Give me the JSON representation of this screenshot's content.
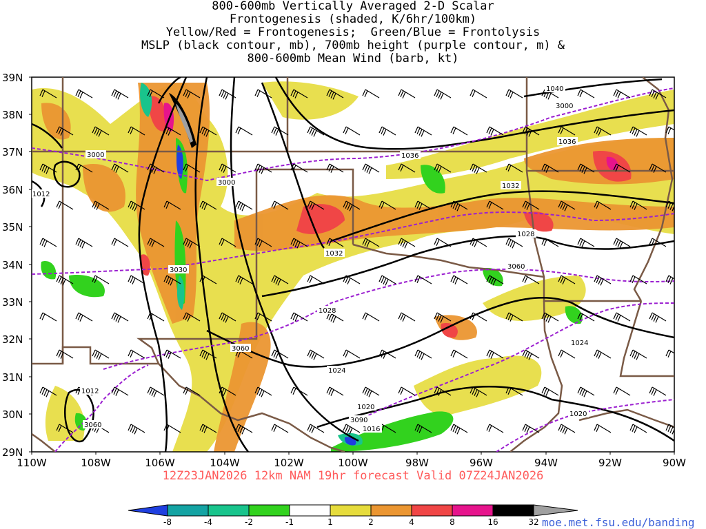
{
  "title_lines": [
    "800-600mb Vertically Averaged 2-D Scalar",
    "Frontogenesis (shaded, K/6hr/100km)",
    "Yellow/Red = Frontogenesis;  Green/Blue = Frontolysis",
    "MSLP (black contour, mb), 700mb height (purple contour, m) &",
    "800-600mb Mean Wind (barb, kt)"
  ],
  "lat_labels": [
    "39N",
    "38N",
    "37N",
    "36N",
    "35N",
    "34N",
    "33N",
    "32N",
    "31N",
    "30N",
    "29N"
  ],
  "lon_labels": [
    "110W",
    "108W",
    "106W",
    "104W",
    "102W",
    "100W",
    "98W",
    "96W",
    "94W",
    "92W",
    "90W"
  ],
  "valid_text": "12Z23JAN2026 12km NAM 19hr forecast Valid 07Z24JAN2026",
  "credit": "moe.met.fsu.edu/banding",
  "colorbar": {
    "ticks": [
      "-8",
      "-4",
      "-2",
      "-1",
      "1",
      "2",
      "4",
      "8",
      "16",
      "32"
    ],
    "colors": [
      "#1f3fe0",
      "#14a3a3",
      "#19c48c",
      "#32d21e",
      "#ffffff",
      "#e6dc3c",
      "#eb9632",
      "#f04646",
      "#e6148c",
      "#000000",
      "#a0a0a0"
    ]
  },
  "mslp_labels": [
    "1040",
    "1036",
    "1036",
    "1032",
    "1032",
    "1028",
    "1028",
    "1024",
    "1024",
    "1020",
    "1020",
    "1016",
    "1012",
    "1012"
  ],
  "height_labels": [
    "3000",
    "3000",
    "3000",
    "3030",
    "3060",
    "3060",
    "3060",
    "3090"
  ],
  "colors": {
    "mslp": "#000000",
    "height": "#9b1fd0",
    "border": "#7a5a46",
    "valid": "#ff5a5a",
    "credit": "#3a5fd8"
  }
}
